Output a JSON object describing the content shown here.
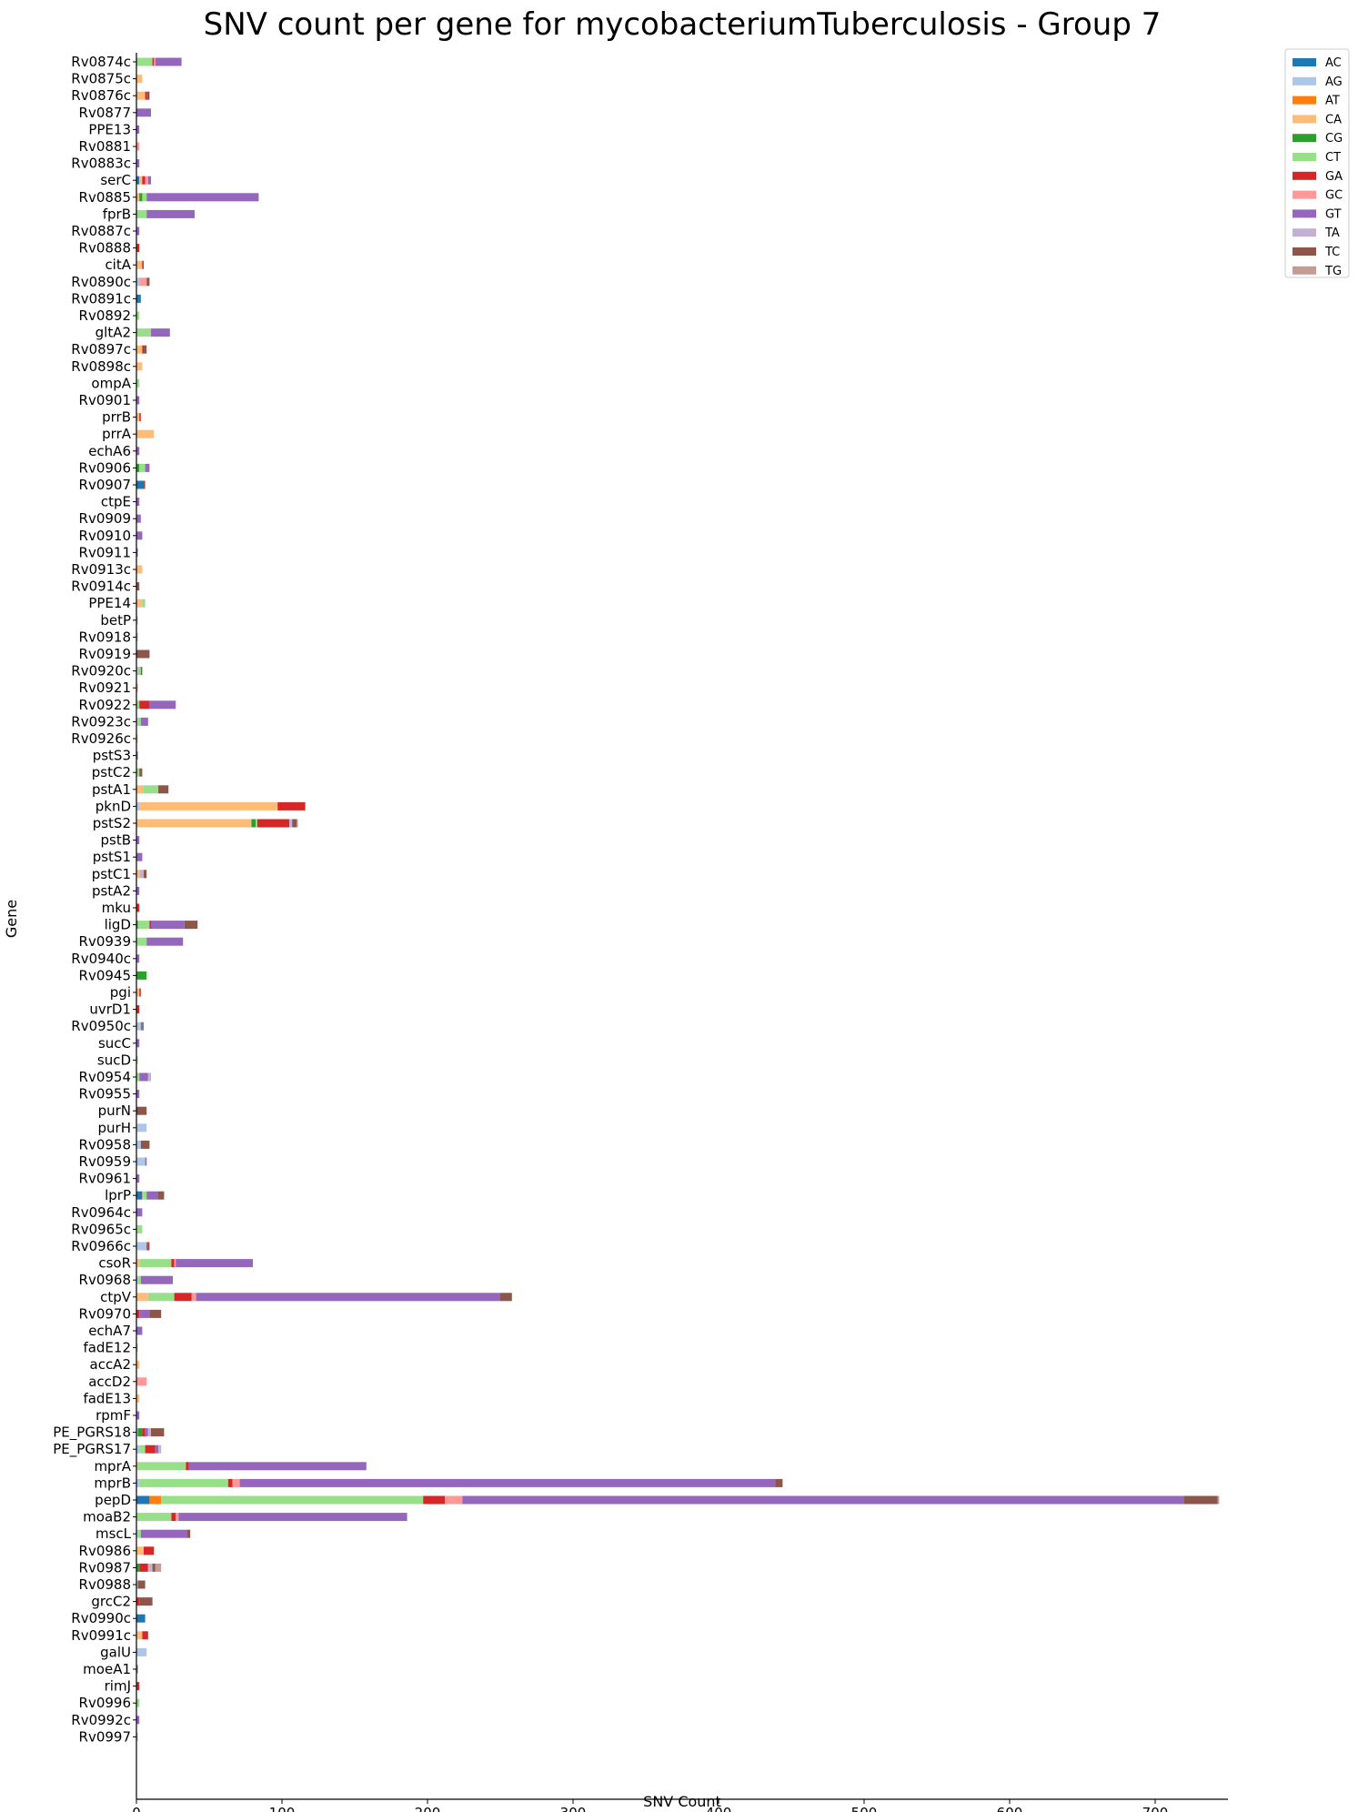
{
  "chart_data": {
    "type": "bar",
    "orientation": "horizontal",
    "stacked": true,
    "title": "SNV count per gene for mycobacteriumTuberculosis - Group 7",
    "xlabel": "SNV Count",
    "ylabel": "Gene",
    "xlim": [
      0,
      750
    ],
    "xticks": [
      0,
      100,
      200,
      300,
      400,
      500,
      600,
      700
    ],
    "legend_position": "top-right-outside",
    "grid": false,
    "series_order": [
      "AC",
      "AG",
      "AT",
      "CA",
      "CG",
      "CT",
      "GA",
      "GC",
      "GT",
      "TA",
      "TC",
      "TG"
    ],
    "colors": {
      "AC": "#1f77b4",
      "AG": "#aec7e8",
      "AT": "#ff7f0e",
      "CA": "#ffbb78",
      "CG": "#2ca02c",
      "CT": "#98df8a",
      "GA": "#d62728",
      "GC": "#ff9896",
      "GT": "#9467bd",
      "TA": "#c5b0d5",
      "TC": "#8c564b",
      "TG": "#c49c94"
    },
    "genes": [
      {
        "name": "Rv0874c",
        "segs": {
          "CT": 11,
          "GC": 1,
          "GA": 1,
          "GT": 18
        }
      },
      {
        "name": "Rv0875c",
        "segs": {
          "CA": 4
        }
      },
      {
        "name": "Rv0876c",
        "segs": {
          "CA": 6,
          "GA": 1,
          "TC": 2
        }
      },
      {
        "name": "Rv0877",
        "segs": {
          "GT": 10
        }
      },
      {
        "name": "PPE13",
        "segs": {
          "GT": 2
        }
      },
      {
        "name": "Rv0881",
        "segs": {
          "GC": 2
        }
      },
      {
        "name": "Rv0883c",
        "segs": {
          "GT": 2
        }
      },
      {
        "name": "serC",
        "segs": {
          "AC": 2,
          "CA": 2,
          "GA": 2,
          "GC": 2,
          "GT": 2
        }
      },
      {
        "name": "Rv0885",
        "segs": {
          "CA": 2,
          "CG": 2,
          "CT": 3,
          "GT": 77
        }
      },
      {
        "name": "fprB",
        "segs": {
          "CT": 7,
          "GT": 33
        }
      },
      {
        "name": "Rv0887c",
        "segs": {
          "GT": 2
        }
      },
      {
        "name": "Rv0888",
        "segs": {
          "GA": 2
        }
      },
      {
        "name": "citA",
        "segs": {
          "CA": 4,
          "GA": 1
        }
      },
      {
        "name": "Rv0890c",
        "segs": {
          "AG": 2,
          "GC": 5,
          "TC": 2
        }
      },
      {
        "name": "Rv0891c",
        "segs": {
          "AC": 3
        }
      },
      {
        "name": "Rv0892",
        "segs": {
          "CT": 2
        }
      },
      {
        "name": "gltA2",
        "segs": {
          "CT": 10,
          "GT": 13
        }
      },
      {
        "name": "Rv0897c",
        "segs": {
          "CA": 4,
          "GA": 1,
          "TC": 2
        }
      },
      {
        "name": "Rv0898c",
        "segs": {
          "CA": 4
        }
      },
      {
        "name": "ompA",
        "segs": {
          "CT": 2
        }
      },
      {
        "name": "Rv0901",
        "segs": {
          "GT": 2
        }
      },
      {
        "name": "prrB",
        "segs": {
          "CA": 2,
          "GA": 1
        }
      },
      {
        "name": "prrA",
        "segs": {
          "CA": 12
        }
      },
      {
        "name": "echA6",
        "segs": {
          "GT": 2
        }
      },
      {
        "name": "Rv0906",
        "segs": {
          "CG": 2,
          "CT": 4,
          "GT": 3
        }
      },
      {
        "name": "Rv0907",
        "segs": {
          "AC": 5,
          "TC": 1
        }
      },
      {
        "name": "ctpE",
        "segs": {
          "GT": 2
        }
      },
      {
        "name": "Rv0909",
        "segs": {
          "GT": 3
        }
      },
      {
        "name": "Rv0910",
        "segs": {
          "GT": 4
        }
      },
      {
        "name": "Rv0911",
        "segs": {
          "GT": 1
        }
      },
      {
        "name": "Rv0913c",
        "segs": {
          "CA": 4
        }
      },
      {
        "name": "Rv0914c",
        "segs": {
          "TC": 2
        }
      },
      {
        "name": "PPE14",
        "segs": {
          "CA": 4,
          "CT": 2
        }
      },
      {
        "name": "betP",
        "segs": {
          "TA": 1
        }
      },
      {
        "name": "Rv0918",
        "segs": {
          "TA": 1
        }
      },
      {
        "name": "Rv0919",
        "segs": {
          "TC": 9
        }
      },
      {
        "name": "Rv0920c",
        "segs": {
          "AG": 1,
          "CT": 2,
          "TC": 1
        }
      },
      {
        "name": "Rv0921",
        "segs": {
          "GC": 1
        }
      },
      {
        "name": "Rv0922",
        "segs": {
          "CT": 2,
          "GA": 7,
          "GT": 18
        }
      },
      {
        "name": "Rv0923c",
        "segs": {
          "AG": 1,
          "CT": 2,
          "GT": 5
        }
      },
      {
        "name": "Rv0926c",
        "segs": {
          "CA": 1
        }
      },
      {
        "name": "pstS3",
        "segs": {
          "GT": 1
        }
      },
      {
        "name": "pstC2",
        "segs": {
          "CT": 2,
          "TC": 2
        }
      },
      {
        "name": "pstA1",
        "segs": {
          "CA": 5,
          "CT": 10,
          "TC": 7
        }
      },
      {
        "name": "pknD",
        "segs": {
          "AG": 2,
          "CA": 95,
          "GA": 19
        }
      },
      {
        "name": "pstS2",
        "segs": {
          "CA": 79,
          "CG": 3,
          "CT": 1,
          "GA": 22,
          "TA": 2,
          "TC": 3,
          "TG": 1
        }
      },
      {
        "name": "pstB",
        "segs": {
          "GT": 2
        }
      },
      {
        "name": "pstS1",
        "segs": {
          "GT": 4
        }
      },
      {
        "name": "pstC1",
        "segs": {
          "CA": 2,
          "TA": 3,
          "TC": 2
        }
      },
      {
        "name": "pstA2",
        "segs": {
          "GT": 2
        }
      },
      {
        "name": "mku",
        "segs": {
          "GA": 2
        }
      },
      {
        "name": "ligD",
        "segs": {
          "CT": 8,
          "CG": 1,
          "GA": 1,
          "GT": 23,
          "TC": 9
        }
      },
      {
        "name": "Rv0939",
        "segs": {
          "CT": 7,
          "GT": 25
        }
      },
      {
        "name": "Rv0940c",
        "segs": {
          "GT": 2
        }
      },
      {
        "name": "Rv0945",
        "segs": {
          "CG": 7
        }
      },
      {
        "name": "pgi",
        "segs": {
          "CA": 2,
          "GA": 1
        }
      },
      {
        "name": "uvrD1",
        "segs": {
          "GA": 2
        }
      },
      {
        "name": "Rv0950c",
        "segs": {
          "AG": 2,
          "CT": 1,
          "GT": 2
        }
      },
      {
        "name": "sucC",
        "segs": {
          "GT": 2
        }
      },
      {
        "name": "sucD",
        "segs": {
          "CT": 1
        }
      },
      {
        "name": "Rv0954",
        "segs": {
          "CT": 2,
          "GT": 6,
          "TA": 2
        }
      },
      {
        "name": "Rv0955",
        "segs": {
          "GT": 2
        }
      },
      {
        "name": "purN",
        "segs": {
          "TC": 7
        }
      },
      {
        "name": "purH",
        "segs": {
          "AG": 7
        }
      },
      {
        "name": "Rv0958",
        "segs": {
          "AG": 3,
          "TC": 6
        }
      },
      {
        "name": "Rv0959",
        "segs": {
          "AG": 6,
          "GT": 1
        }
      },
      {
        "name": "Rv0961",
        "segs": {
          "GT": 2
        }
      },
      {
        "name": "lprP",
        "segs": {
          "AC": 4,
          "CT": 2,
          "CA": 1,
          "GT": 8,
          "TC": 4
        }
      },
      {
        "name": "Rv0964c",
        "segs": {
          "GT": 4
        }
      },
      {
        "name": "Rv0965c",
        "segs": {
          "CT": 4
        }
      },
      {
        "name": "Rv0966c",
        "segs": {
          "AG": 7,
          "GA": 1,
          "TC": 1
        }
      },
      {
        "name": "csoR",
        "segs": {
          "CT": 22,
          "GA": 2,
          "CA": 2,
          "GC": 1,
          "GT": 53
        }
      },
      {
        "name": "Rv0968",
        "segs": {
          "CT": 2,
          "AG": 1,
          "GT": 22
        }
      },
      {
        "name": "ctpV",
        "segs": {
          "CA": 8,
          "CT": 18,
          "GA": 12,
          "GC": 3,
          "GT": 209,
          "TC": 8
        }
      },
      {
        "name": "Rv0970",
        "segs": {
          "GA": 2,
          "GT": 7,
          "TC": 8
        }
      },
      {
        "name": "echA7",
        "segs": {
          "GT": 4
        }
      },
      {
        "name": "fadE12",
        "segs": {
          "CT": 1
        }
      },
      {
        "name": "accA2",
        "segs": {
          "CA": 2
        }
      },
      {
        "name": "accD2",
        "segs": {
          "GC": 7
        }
      },
      {
        "name": "fadE13",
        "segs": {
          "CA": 2
        }
      },
      {
        "name": "rpmF",
        "segs": {
          "GT": 2
        }
      },
      {
        "name": "PE_PGRS18",
        "segs": {
          "CG": 3,
          "AG": 1,
          "GA": 2,
          "TA": 2,
          "GT": 2,
          "TC": 9
        }
      },
      {
        "name": "PE_PGRS17",
        "segs": {
          "CT": 4,
          "GA": 7,
          "AG": 2,
          "GT": 2,
          "TA": 2
        }
      },
      {
        "name": "mprA",
        "segs": {
          "CT": 33,
          "GA": 2,
          "CA": 1,
          "GT": 122
        }
      },
      {
        "name": "mprB",
        "segs": {
          "AG": 2,
          "CT": 61,
          "GA": 3,
          "GC": 5,
          "GT": 368,
          "TC": 5
        }
      },
      {
        "name": "pepD",
        "segs": {
          "AC": 9,
          "AT": 8,
          "CT": 180,
          "GA": 15,
          "GC": 12,
          "GT": 496,
          "TC": 23,
          "TG": 1
        }
      },
      {
        "name": "moaB2",
        "segs": {
          "CT": 24,
          "GA": 3,
          "GC": 2,
          "GT": 157
        }
      },
      {
        "name": "mscL",
        "segs": {
          "CT": 2,
          "AG": 1,
          "GT": 32,
          "TC": 2
        }
      },
      {
        "name": "Rv0986",
        "segs": {
          "CA": 5,
          "GA": 7
        }
      },
      {
        "name": "Rv0987",
        "segs": {
          "CG": 2,
          "GA": 6,
          "TC": 2,
          "TA": 3,
          "TG": 4
        }
      },
      {
        "name": "Rv0988",
        "segs": {
          "AG": 1,
          "TC": 5
        }
      },
      {
        "name": "grcC2",
        "segs": {
          "GA": 2,
          "TC": 9
        }
      },
      {
        "name": "Rv0990c",
        "segs": {
          "AC": 6
        }
      },
      {
        "name": "Rv0991c",
        "segs": {
          "CA": 4,
          "GA": 4
        }
      },
      {
        "name": "galU",
        "segs": {
          "AG": 7
        }
      },
      {
        "name": "moeA1",
        "segs": {
          "GT": 1
        }
      },
      {
        "name": "rimJ",
        "segs": {
          "GA": 2
        }
      },
      {
        "name": "Rv0996",
        "segs": {
          "CT": 2
        }
      },
      {
        "name": "Rv0992c",
        "segs": {
          "GT": 2
        }
      },
      {
        "name": "Rv0997",
        "segs": {
          "TA": 1
        }
      }
    ]
  }
}
